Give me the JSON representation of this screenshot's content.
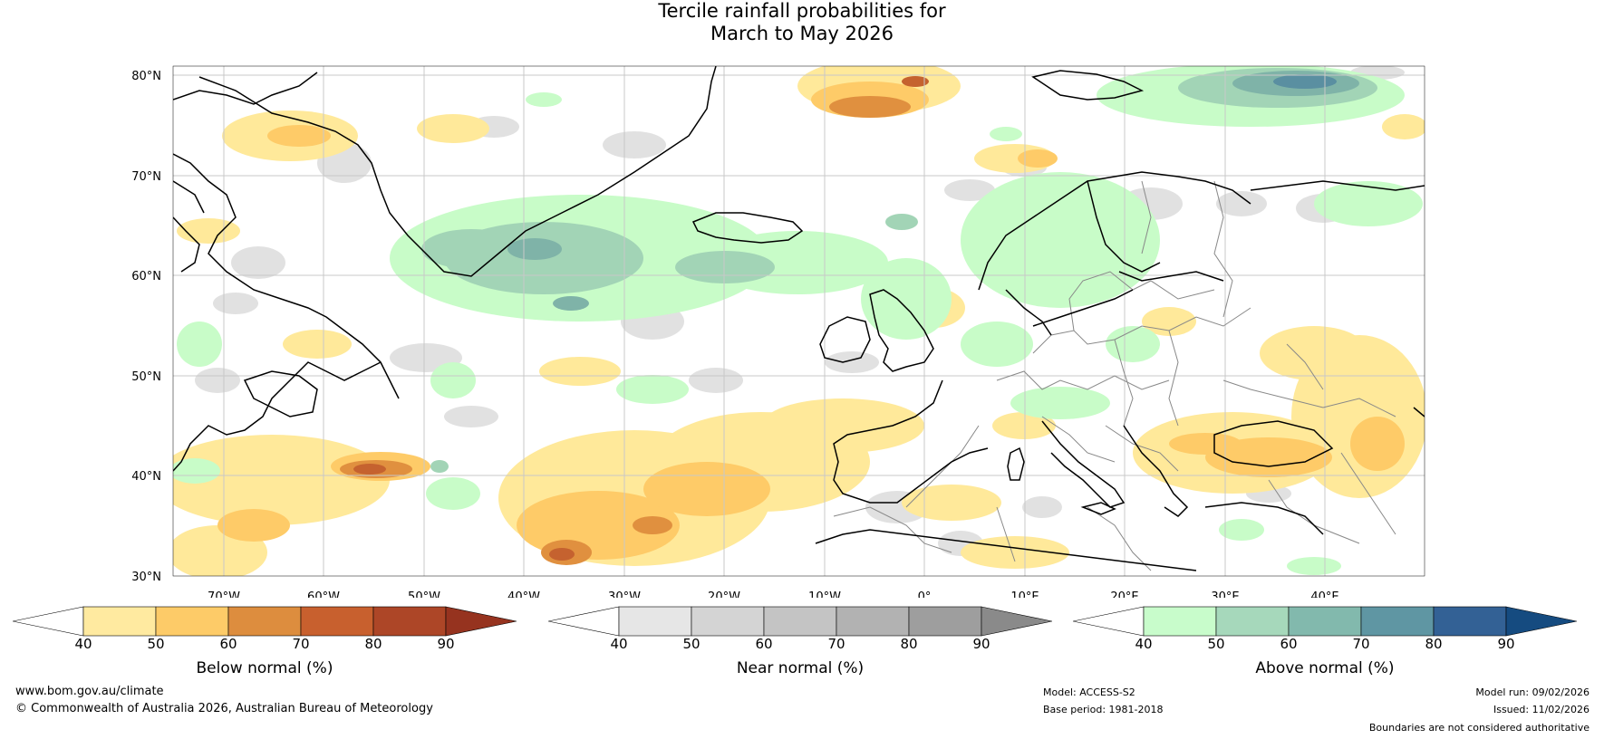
{
  "title": {
    "line1": "Tercile rainfall probabilities for",
    "line2": "March to May 2026"
  },
  "map": {
    "lat_labels": [
      "80°N",
      "70°N",
      "60°N",
      "50°N",
      "40°N",
      "30°N"
    ],
    "lon_labels": [
      "70°W",
      "60°W",
      "50°W",
      "40°W",
      "30°W",
      "20°W",
      "10°W",
      "0°",
      "10°E",
      "20°E",
      "30°E",
      "40°E"
    ],
    "colors": {
      "below_40": "#ffe99a",
      "below_50": "#fecb68",
      "below_60": "#e0903f",
      "below_70": "#c5622f",
      "near": "#e1e1e1",
      "above_40": "#c8fcc8",
      "above_50": "#a2d4b6",
      "above_60": "#7fb3a8",
      "above_70": "#5a8fa1",
      "coast": "#000000",
      "border": "#888888",
      "grid": "#c8c8c8"
    }
  },
  "colorbars": [
    {
      "caption": "Below normal (%)",
      "ticks": [
        "40",
        "50",
        "60",
        "70",
        "80",
        "90"
      ],
      "colors": [
        "#ffffff",
        "#ffeaa0",
        "#fdcb68",
        "#dd8d3e",
        "#c8602e",
        "#ad4627",
        "#96331f"
      ]
    },
    {
      "caption": "Near normal (%)",
      "ticks": [
        "40",
        "50",
        "60",
        "70",
        "80",
        "90"
      ],
      "colors": [
        "#ffffff",
        "#e6e6e6",
        "#d4d4d4",
        "#c4c4c4",
        "#b2b2b2",
        "#9e9e9e",
        "#8a8a8a"
      ]
    },
    {
      "caption": "Above normal (%)",
      "ticks": [
        "40",
        "50",
        "60",
        "70",
        "80",
        "90"
      ],
      "colors": [
        "#ffffff",
        "#c8fccb",
        "#a6d8bb",
        "#82b9ad",
        "#5f96a3",
        "#336195",
        "#154b80"
      ]
    }
  ],
  "footer": {
    "website": "www.bom.gov.au/climate",
    "copyright": "© Commonwealth of Australia 2026, Australian Bureau of Meteorology",
    "model": "Model: ACCESS-S2",
    "base_period": "Base period: 1981-2018",
    "model_run": "Model run: 09/02/2026",
    "issued": "Issued: 11/02/2026",
    "disclaimer": "Boundaries are not considered authoritative"
  }
}
